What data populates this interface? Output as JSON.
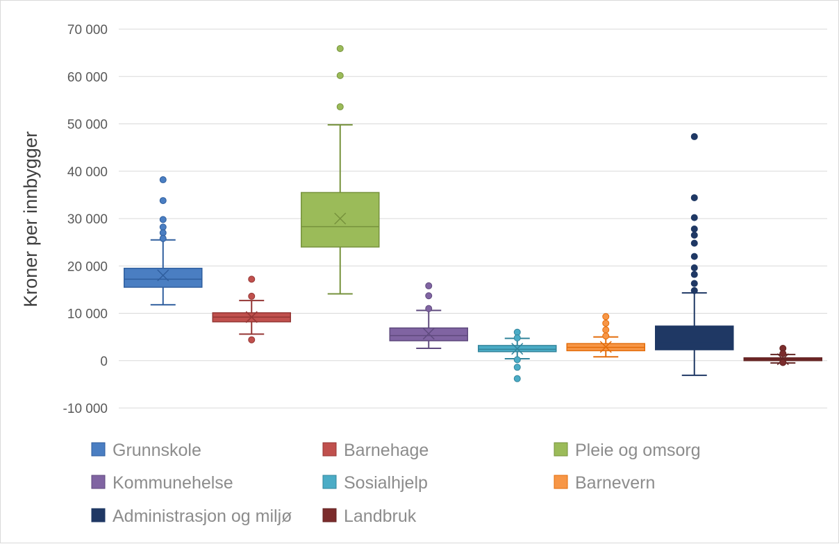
{
  "chart_data": {
    "type": "box",
    "title": "",
    "xlabel": "",
    "ylabel": "Kroner per innbygger",
    "ylim": [
      -10000,
      70000
    ],
    "yticks": [
      -10000,
      0,
      10000,
      20000,
      30000,
      40000,
      50000,
      60000,
      70000
    ],
    "ytick_labels": [
      "-10 000",
      "0",
      "10 000",
      "20 000",
      "30 000",
      "40 000",
      "50 000",
      "60 000",
      "70 000"
    ],
    "grid": true,
    "legend_position": "bottom",
    "series": [
      {
        "name": "Grunnskole",
        "color": "#4a7ec2",
        "stroke": "#2f5e9e",
        "min": 11800,
        "q1": 15500,
        "median": 17200,
        "q3": 19500,
        "max": 25500,
        "mean": 18000,
        "outliers": [
          38200,
          33800,
          29800,
          28200,
          27000,
          25800
        ]
      },
      {
        "name": "Barnehage",
        "color": "#c0504d",
        "stroke": "#943634",
        "min": 5600,
        "q1": 8200,
        "median": 9200,
        "q3": 10100,
        "max": 12700,
        "mean": 9200,
        "outliers": [
          17200,
          13600,
          4400
        ]
      },
      {
        "name": "Pleie og omsorg",
        "color": "#9bbb59",
        "stroke": "#76923c",
        "min": 14100,
        "q1": 24000,
        "median": 28300,
        "q3": 35500,
        "max": 49800,
        "mean": 30000,
        "outliers": [
          65900,
          60200,
          53600
        ]
      },
      {
        "name": "Kommunehelse",
        "color": "#8064a2",
        "stroke": "#5f4a7e",
        "min": 2600,
        "q1": 4200,
        "median": 5300,
        "q3": 6900,
        "max": 10600,
        "mean": 5700,
        "outliers": [
          15800,
          13700,
          11000
        ]
      },
      {
        "name": "Sosialhjelp",
        "color": "#4bacc6",
        "stroke": "#31849b",
        "min": 400,
        "q1": 1900,
        "median": 2400,
        "q3": 3200,
        "max": 4700,
        "mean": 2500,
        "outliers": [
          6000,
          4800,
          200,
          -1400,
          -3800
        ]
      },
      {
        "name": "Barnevern",
        "color": "#f79646",
        "stroke": "#e36c0a",
        "min": 800,
        "q1": 2100,
        "median": 2800,
        "q3": 3600,
        "max": 5000,
        "mean": 2900,
        "outliers": [
          9300,
          7900,
          6500,
          5200
        ]
      },
      {
        "name": "Administrasjon og miljø",
        "color": "#1f3864",
        "stroke": "#1f3864",
        "min": -3100,
        "q1": 2300,
        "median": 4000,
        "q3": 7300,
        "max": 14300,
        "mean": 5900,
        "outliers": [
          47300,
          34400,
          30200,
          27800,
          26500,
          24800,
          22000,
          19600,
          18200,
          16300,
          14800
        ]
      },
      {
        "name": "Landbruk",
        "color": "#7b2c2c",
        "stroke": "#632423",
        "min": -500,
        "q1": 0,
        "median": 300,
        "q3": 600,
        "max": 1300,
        "mean": 300,
        "outliers": [
          2600,
          1500,
          -400
        ]
      }
    ]
  }
}
